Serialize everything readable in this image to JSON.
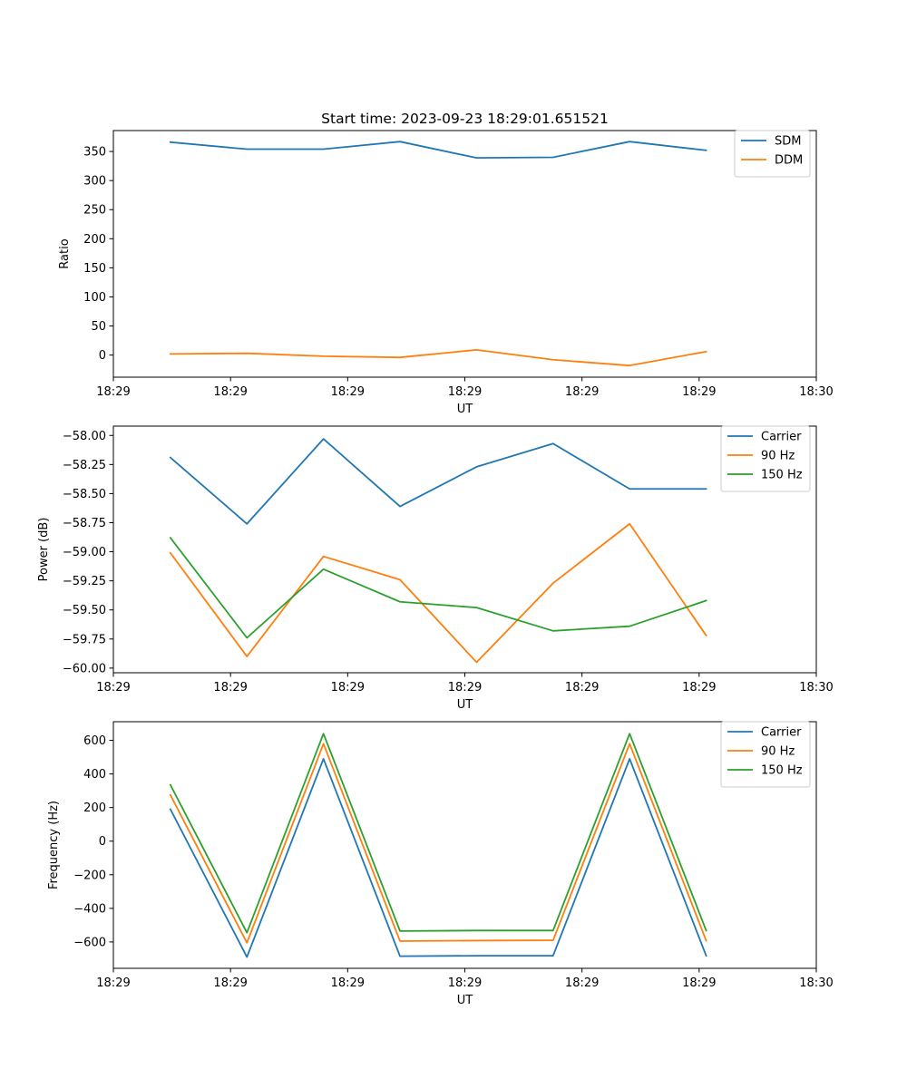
{
  "chart_data": [
    {
      "type": "line",
      "title": "Start time: 2023-09-23 18:29:01.651521",
      "xlabel": "UT",
      "ylabel": "Ratio",
      "xlim": [
        0,
        9
      ],
      "ylim": [
        -38,
        386
      ],
      "x_ticks": [
        {
          "x": 0,
          "label": "18:29"
        },
        {
          "x": 1.5,
          "label": "18:29"
        },
        {
          "x": 3,
          "label": "18:29"
        },
        {
          "x": 4.5,
          "label": "18:29"
        },
        {
          "x": 6,
          "label": "18:29"
        },
        {
          "x": 7.5,
          "label": "18:29"
        },
        {
          "x": 9,
          "label": "18:30"
        }
      ],
      "y_ticks": [
        {
          "y": 0,
          "label": "0"
        },
        {
          "y": 50,
          "label": "50"
        },
        {
          "y": 100,
          "label": "100"
        },
        {
          "y": 150,
          "label": "150"
        },
        {
          "y": 200,
          "label": "200"
        },
        {
          "y": 250,
          "label": "250"
        },
        {
          "y": 300,
          "label": "300"
        },
        {
          "y": 350,
          "label": "350"
        }
      ],
      "x": [
        0.73,
        1.71,
        2.69,
        3.67,
        4.65,
        5.63,
        6.61,
        7.59
      ],
      "legend_position": "upper right",
      "series": [
        {
          "name": "SDM",
          "color": "#1f77b4",
          "values": [
            366,
            354,
            354,
            367,
            339,
            340,
            367,
            352
          ]
        },
        {
          "name": "DDM",
          "color": "#ff7f0e",
          "values": [
            2,
            3,
            -2,
            -4,
            9,
            -8,
            -18,
            6
          ]
        }
      ]
    },
    {
      "type": "line",
      "title": "",
      "xlabel": "UT",
      "ylabel": "Power (dB)",
      "xlim": [
        0,
        9
      ],
      "ylim": [
        -60.04,
        -57.92
      ],
      "x_ticks": [
        {
          "x": 0,
          "label": "18:29"
        },
        {
          "x": 1.5,
          "label": "18:29"
        },
        {
          "x": 3,
          "label": "18:29"
        },
        {
          "x": 4.5,
          "label": "18:29"
        },
        {
          "x": 6,
          "label": "18:29"
        },
        {
          "x": 7.5,
          "label": "18:29"
        },
        {
          "x": 9,
          "label": "18:30"
        }
      ],
      "y_ticks": [
        {
          "y": -60.0,
          "label": "−60.00"
        },
        {
          "y": -59.75,
          "label": "−59.75"
        },
        {
          "y": -59.5,
          "label": "−59.50"
        },
        {
          "y": -59.25,
          "label": "−59.25"
        },
        {
          "y": -59.0,
          "label": "−59.00"
        },
        {
          "y": -58.75,
          "label": "−58.75"
        },
        {
          "y": -58.5,
          "label": "−58.50"
        },
        {
          "y": -58.25,
          "label": "−58.25"
        },
        {
          "y": -58.0,
          "label": "−58.00"
        }
      ],
      "x": [
        0.73,
        1.71,
        2.69,
        3.67,
        4.65,
        5.63,
        6.61,
        7.59
      ],
      "legend_position": "upper right",
      "series": [
        {
          "name": "Carrier",
          "color": "#1f77b4",
          "values": [
            -58.19,
            -58.76,
            -58.03,
            -58.61,
            -58.27,
            -58.07,
            -58.46,
            -58.46
          ]
        },
        {
          "name": "90 Hz",
          "color": "#ff7f0e",
          "values": [
            -59.01,
            -59.9,
            -59.04,
            -59.24,
            -59.95,
            -59.27,
            -58.76,
            -59.72
          ]
        },
        {
          "name": "150 Hz",
          "color": "#2ca02c",
          "values": [
            -58.88,
            -59.74,
            -59.15,
            -59.43,
            -59.48,
            -59.68,
            -59.64,
            -59.42
          ]
        }
      ]
    },
    {
      "type": "line",
      "title": "",
      "xlabel": "UT",
      "ylabel": "Frequency (Hz)",
      "xlim": [
        0,
        9
      ],
      "ylim": [
        -757,
        711
      ],
      "x_ticks": [
        {
          "x": 0,
          "label": "18:29"
        },
        {
          "x": 1.5,
          "label": "18:29"
        },
        {
          "x": 3,
          "label": "18:29"
        },
        {
          "x": 4.5,
          "label": "18:29"
        },
        {
          "x": 6,
          "label": "18:29"
        },
        {
          "x": 7.5,
          "label": "18:29"
        },
        {
          "x": 9,
          "label": "18:30"
        }
      ],
      "y_ticks": [
        {
          "y": -600,
          "label": "−600"
        },
        {
          "y": -400,
          "label": "−400"
        },
        {
          "y": -200,
          "label": "−200"
        },
        {
          "y": 0,
          "label": "0"
        },
        {
          "y": 200,
          "label": "200"
        },
        {
          "y": 400,
          "label": "400"
        },
        {
          "y": 600,
          "label": "600"
        }
      ],
      "x": [
        0.73,
        1.71,
        2.69,
        3.67,
        4.65,
        5.63,
        6.61,
        7.59
      ],
      "legend_position": "upper right",
      "series": [
        {
          "name": "Carrier",
          "color": "#1f77b4",
          "values": [
            190,
            -690,
            490,
            -685,
            -682,
            -682,
            490,
            -682
          ]
        },
        {
          "name": "90 Hz",
          "color": "#ff7f0e",
          "values": [
            275,
            -605,
            580,
            -595,
            -592,
            -590,
            580,
            -592
          ]
        },
        {
          "name": "150 Hz",
          "color": "#2ca02c",
          "values": [
            335,
            -545,
            640,
            -535,
            -532,
            -532,
            640,
            -532
          ]
        }
      ]
    }
  ]
}
